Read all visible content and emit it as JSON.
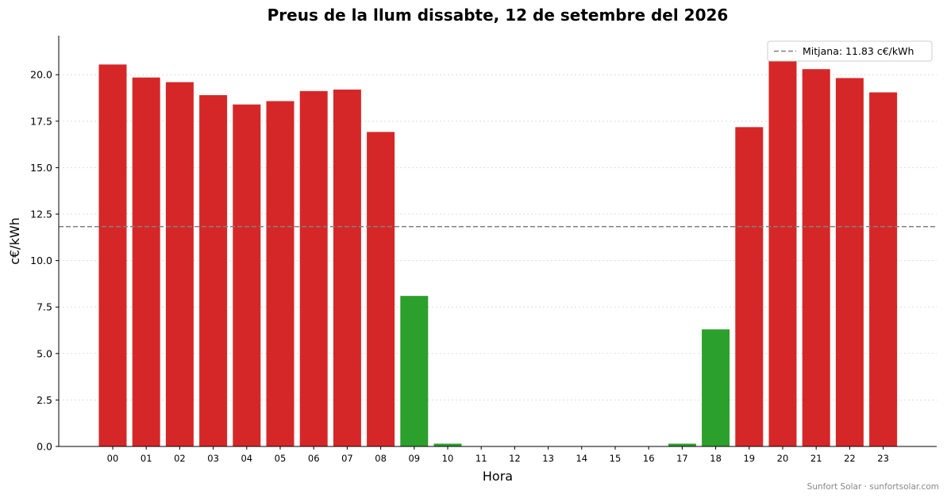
{
  "chart_data": {
    "type": "bar",
    "title": "Preus de la llum dissabte, 12 de setembre del 2026",
    "xlabel": "Hora",
    "ylabel": "c€/kWh",
    "categories": [
      "00",
      "01",
      "02",
      "03",
      "04",
      "05",
      "06",
      "07",
      "08",
      "09",
      "10",
      "11",
      "12",
      "13",
      "14",
      "15",
      "16",
      "17",
      "18",
      "19",
      "20",
      "21",
      "22",
      "23"
    ],
    "values": [
      20.55,
      19.85,
      19.6,
      18.9,
      18.4,
      18.58,
      19.12,
      19.2,
      16.92,
      8.1,
      0.15,
      0,
      0,
      0,
      0,
      0,
      0,
      0.15,
      6.3,
      17.18,
      20.75,
      20.3,
      19.82,
      19.05
    ],
    "bar_colors": [
      "#d62728",
      "#d62728",
      "#d62728",
      "#d62728",
      "#d62728",
      "#d62728",
      "#d62728",
      "#d62728",
      "#d62728",
      "#2ca02c",
      "#2ca02c",
      "#2ca02c",
      "#2ca02c",
      "#2ca02c",
      "#2ca02c",
      "#2ca02c",
      "#2ca02c",
      "#2ca02c",
      "#2ca02c",
      "#d62728",
      "#d62728",
      "#d62728",
      "#d62728",
      "#d62728"
    ],
    "ylim": [
      0,
      22.1
    ],
    "yticks": [
      "0.0",
      "2.5",
      "5.0",
      "7.5",
      "10.0",
      "12.5",
      "15.0",
      "17.5",
      "20.0"
    ],
    "mean": 11.83,
    "mean_label": "Mitjana: 11.83 c€/kWh",
    "mean_color": "#808080",
    "grid": "horizontal dotted",
    "legend_position": "top-right"
  },
  "footer": {
    "credit": "Sunfort Solar · sunfortsolar.com"
  }
}
